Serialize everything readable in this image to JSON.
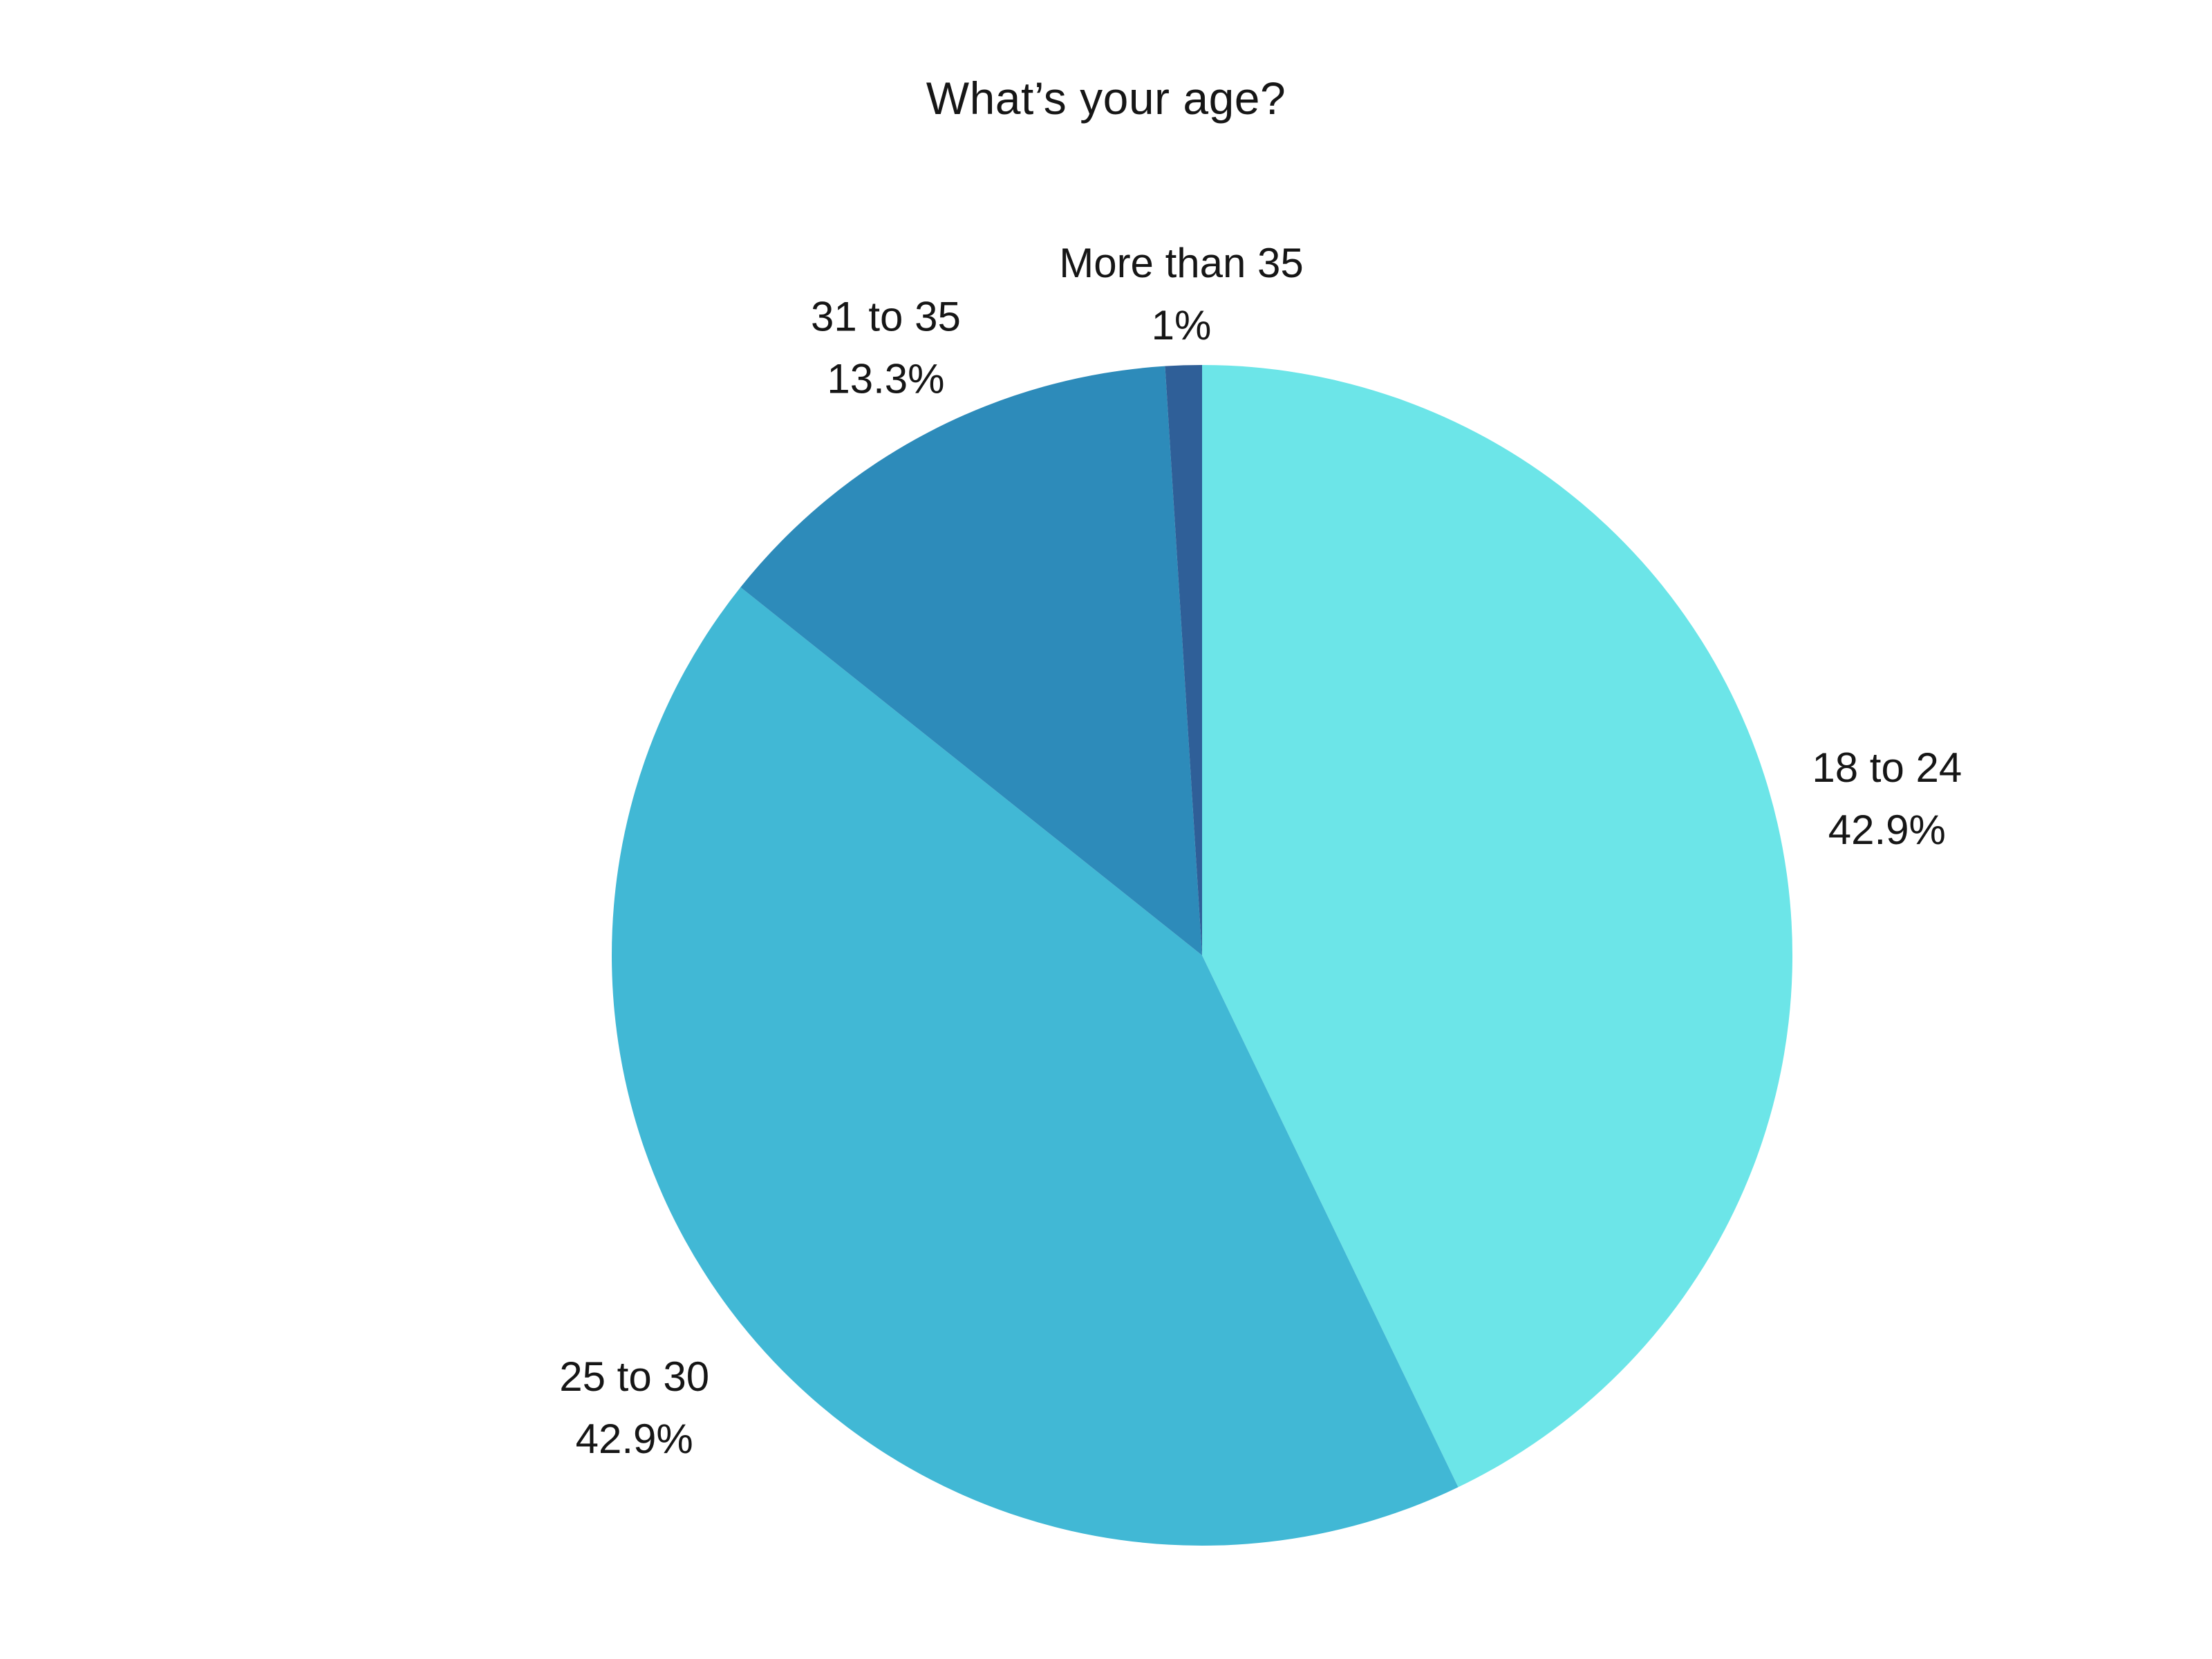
{
  "page": {
    "background_color": "#ffffff",
    "text_color": "#161616"
  },
  "chart_data": {
    "type": "pie",
    "title": "What’s your age?",
    "categories": [
      "18 to 24",
      "25 to 30",
      "31 to 35",
      "More than 35"
    ],
    "values": [
      42.9,
      42.9,
      13.3,
      1
    ],
    "slices": [
      {
        "label": "18 to 24",
        "value": 42.9,
        "percent_label": "42.9%",
        "color": "#6CE5E8",
        "label_distance": 1.19
      },
      {
        "label": "25 to 30",
        "value": 42.9,
        "percent_label": "42.9%",
        "color": "#41B8D5",
        "label_distance": 1.23
      },
      {
        "label": "31 to 35",
        "value": 13.3,
        "percent_label": "13.3%",
        "color": "#2D8BBA",
        "label_distance": 1.16
      },
      {
        "label": "More than 35",
        "value": 1,
        "percent_label": "1%",
        "color": "#2F5F98",
        "label_distance": 1.12
      }
    ],
    "start_angle_deg": -90,
    "direction": "clockwise",
    "legend_position": "none",
    "data_labels": "outside, two lines (category + percent)",
    "label_color": "#161616"
  }
}
